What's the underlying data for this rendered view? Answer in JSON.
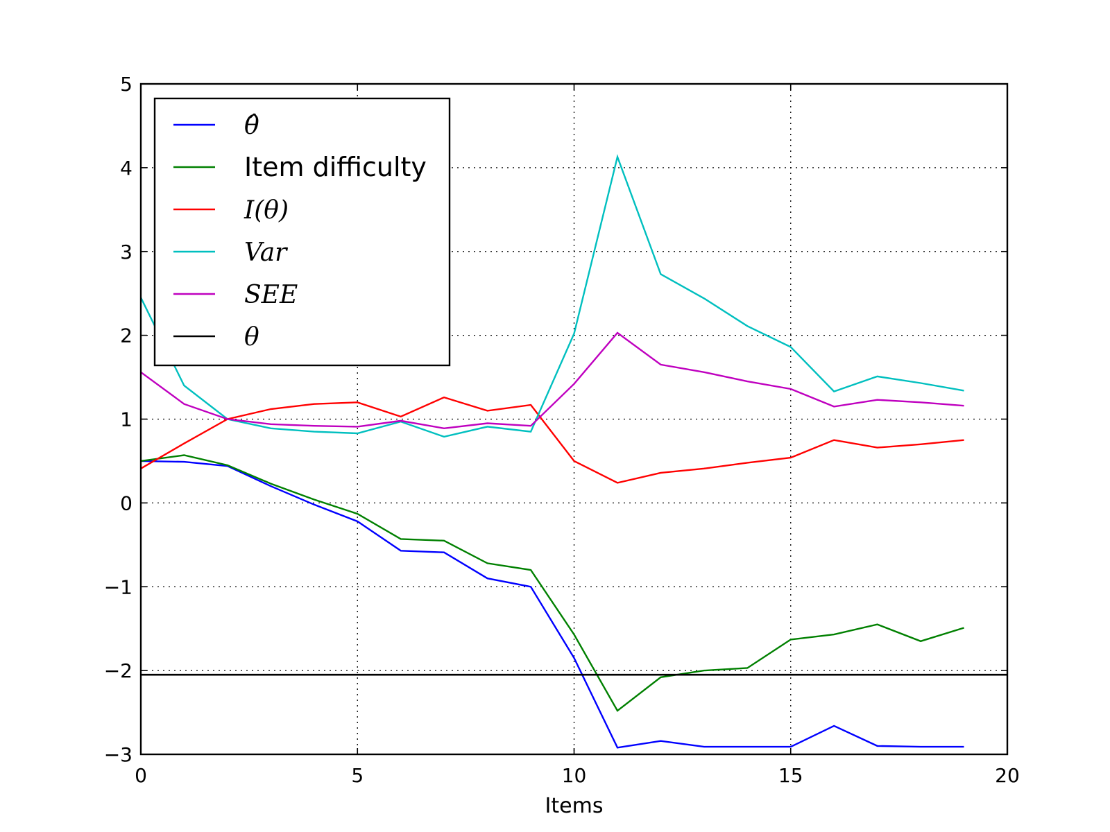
{
  "chart_data": {
    "type": "line",
    "xlabel": "Items",
    "ylabel": "",
    "xlim": [
      0,
      20
    ],
    "ylim": [
      -3,
      5
    ],
    "xticks": [
      0,
      5,
      10,
      15,
      20
    ],
    "yticks": [
      -3,
      -2,
      -1,
      0,
      1,
      2,
      3,
      4,
      5
    ],
    "xtick_labels": [
      "0",
      "5",
      "10",
      "15",
      "20"
    ],
    "ytick_labels": [
      "−3",
      "−2",
      "−1",
      "0",
      "1",
      "2",
      "3",
      "4",
      "5"
    ],
    "grid": true,
    "legend_position": "top-left",
    "x": [
      0,
      1,
      2,
      3,
      4,
      5,
      6,
      7,
      8,
      9,
      10,
      11,
      12,
      13,
      14,
      15,
      16,
      17,
      18,
      19
    ],
    "series": [
      {
        "name": "θ̂",
        "color": "#0000ff",
        "values": [
          0.5,
          0.49,
          0.44,
          0.2,
          -0.02,
          -0.22,
          -0.57,
          -0.59,
          -0.9,
          -1.0,
          -1.85,
          -2.92,
          -2.84,
          -2.91,
          -2.91,
          -2.91,
          -2.66,
          -2.9,
          -2.91,
          -2.91
        ]
      },
      {
        "name": "Item difficulty",
        "color": "#008000",
        "values": [
          0.5,
          0.57,
          0.45,
          0.23,
          0.04,
          -0.13,
          -0.43,
          -0.45,
          -0.72,
          -0.8,
          -1.57,
          -2.48,
          -2.08,
          -2.0,
          -1.97,
          -1.63,
          -1.57,
          -1.45,
          -1.65,
          -1.49
        ]
      },
      {
        "name": "I(θ)",
        "color": "#ff0000",
        "values": [
          0.41,
          0.71,
          1.0,
          1.12,
          1.18,
          1.2,
          1.03,
          1.26,
          1.1,
          1.17,
          0.5,
          0.24,
          0.36,
          0.41,
          0.48,
          0.54,
          0.75,
          0.66,
          0.7,
          0.75
        ]
      },
      {
        "name": "Var",
        "color": "#00bfbf",
        "values": [
          2.45,
          1.4,
          1.0,
          0.89,
          0.85,
          0.83,
          0.97,
          0.79,
          0.91,
          0.85,
          2.02,
          4.13,
          2.73,
          2.44,
          2.11,
          1.86,
          1.33,
          1.51,
          1.43,
          1.34
        ]
      },
      {
        "name": "SEE",
        "color": "#bf00bf",
        "values": [
          1.56,
          1.18,
          1.0,
          0.94,
          0.92,
          0.91,
          0.98,
          0.89,
          0.95,
          0.92,
          1.42,
          2.03,
          1.65,
          1.56,
          1.45,
          1.36,
          1.15,
          1.23,
          1.2,
          1.16
        ]
      },
      {
        "name": "θ",
        "color": "#000000",
        "constant": -2.05
      }
    ]
  }
}
